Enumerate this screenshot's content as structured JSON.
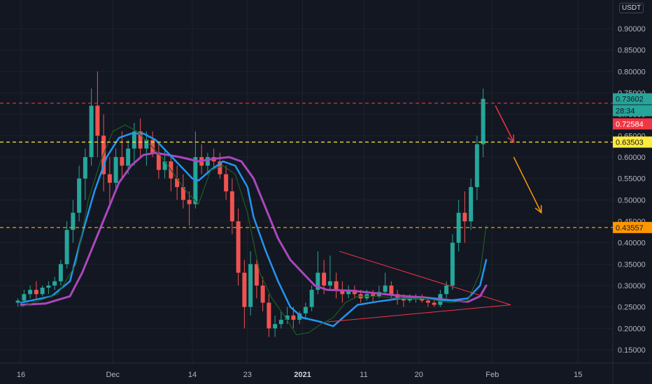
{
  "chart_data": {
    "type": "candlestick",
    "currency": "USDT",
    "ylim": [
      0.12,
      0.96
    ],
    "y_ticks": [
      "0.90000",
      "0.85000",
      "0.80000",
      "0.75000",
      "0.70000",
      "0.65000",
      "0.60000",
      "0.55000",
      "0.50000",
      "0.45000",
      "0.40000",
      "0.35000",
      "0.30000",
      "0.25000",
      "0.20000",
      "0.15000"
    ],
    "y_tick_values": [
      0.9,
      0.85,
      0.8,
      0.75,
      0.7,
      0.65,
      0.6,
      0.55,
      0.5,
      0.45,
      0.4,
      0.35,
      0.3,
      0.25,
      0.2,
      0.15
    ],
    "x_ticks": [
      {
        "label": "16",
        "day": 0,
        "bold": false
      },
      {
        "label": "Dec",
        "day": 15,
        "bold": false
      },
      {
        "label": "14",
        "day": 28,
        "bold": false
      },
      {
        "label": "23",
        "day": 37,
        "bold": false
      },
      {
        "label": "2021",
        "day": 46,
        "bold": true
      },
      {
        "label": "11",
        "day": 56,
        "bold": false
      },
      {
        "label": "20",
        "day": 65,
        "bold": false
      },
      {
        "label": "Feb",
        "day": 77,
        "bold": false
      },
      {
        "label": "15",
        "day": 91,
        "bold": false
      }
    ],
    "price_labels": [
      {
        "label": "0.73602",
        "value": 0.73602,
        "color": "#26a69a",
        "text_color": "#131722"
      },
      {
        "label": "28:34",
        "value": 0.7085,
        "color": "#26a69a",
        "text_color": "#131722"
      },
      {
        "label": "0.72584",
        "value": 0.6775,
        "color": "#f23645",
        "text_color": "#ffffff"
      },
      {
        "label": "0.63503",
        "value": 0.63503,
        "color": "#ffeb3b",
        "text_color": "#131722"
      },
      {
        "label": "0.43557",
        "value": 0.43557,
        "color": "#ff9800",
        "text_color": "#131722"
      }
    ],
    "horizontal_lines": [
      {
        "value": 0.72584,
        "color": "#f23645"
      },
      {
        "value": 0.63503,
        "color": "#ffeb3b"
      },
      {
        "value": 0.43557,
        "color": "#ff9800"
      }
    ],
    "ma_series": [
      {
        "color": "#ab47bc",
        "points": [
          [
            0,
            0.255
          ],
          [
            4,
            0.258
          ],
          [
            8,
            0.275
          ],
          [
            10,
            0.33
          ],
          [
            12,
            0.4
          ],
          [
            14,
            0.47
          ],
          [
            16,
            0.54
          ],
          [
            18,
            0.58
          ],
          [
            20,
            0.605
          ],
          [
            22,
            0.61
          ],
          [
            24,
            0.605
          ],
          [
            26,
            0.6
          ],
          [
            29,
            0.59
          ],
          [
            31,
            0.595
          ],
          [
            34,
            0.6
          ],
          [
            36,
            0.59
          ],
          [
            38,
            0.55
          ],
          [
            40,
            0.48
          ],
          [
            42,
            0.41
          ],
          [
            44,
            0.36
          ],
          [
            46,
            0.33
          ],
          [
            48,
            0.3
          ],
          [
            50,
            0.29
          ],
          [
            54,
            0.288
          ],
          [
            58,
            0.282
          ],
          [
            62,
            0.276
          ],
          [
            66,
            0.272
          ],
          [
            70,
            0.266
          ],
          [
            73,
            0.262
          ],
          [
            75,
            0.275
          ],
          [
            76,
            0.3
          ]
        ]
      },
      {
        "color": "#2196f3",
        "points": [
          [
            0,
            0.26
          ],
          [
            5,
            0.275
          ],
          [
            8,
            0.31
          ],
          [
            10,
            0.42
          ],
          [
            12,
            0.52
          ],
          [
            14,
            0.6
          ],
          [
            16,
            0.645
          ],
          [
            18,
            0.655
          ],
          [
            20,
            0.655
          ],
          [
            22,
            0.64
          ],
          [
            24,
            0.61
          ],
          [
            26,
            0.58
          ],
          [
            28,
            0.55
          ],
          [
            29,
            0.545
          ],
          [
            31,
            0.57
          ],
          [
            33,
            0.59
          ],
          [
            35,
            0.58
          ],
          [
            37,
            0.53
          ],
          [
            38,
            0.46
          ],
          [
            40,
            0.38
          ],
          [
            42,
            0.31
          ],
          [
            44,
            0.25
          ],
          [
            46,
            0.225
          ],
          [
            49,
            0.215
          ],
          [
            51,
            0.205
          ],
          [
            53,
            0.23
          ],
          [
            55,
            0.255
          ],
          [
            58,
            0.262
          ],
          [
            62,
            0.27
          ],
          [
            66,
            0.27
          ],
          [
            70,
            0.265
          ],
          [
            73,
            0.27
          ],
          [
            75,
            0.3
          ],
          [
            76,
            0.36
          ]
        ]
      },
      {
        "color": "#1b5e20",
        "points": [
          [
            0,
            0.25
          ],
          [
            6,
            0.28
          ],
          [
            9,
            0.35
          ],
          [
            11,
            0.5
          ],
          [
            13,
            0.59
          ],
          [
            15,
            0.66
          ],
          [
            17,
            0.675
          ],
          [
            19,
            0.66
          ],
          [
            21,
            0.63
          ],
          [
            23,
            0.6
          ],
          [
            25,
            0.56
          ],
          [
            27,
            0.52
          ],
          [
            29,
            0.49
          ],
          [
            31,
            0.57
          ],
          [
            33,
            0.58
          ],
          [
            35,
            0.56
          ],
          [
            37,
            0.47
          ],
          [
            39,
            0.33
          ],
          [
            41,
            0.27
          ],
          [
            43,
            0.23
          ],
          [
            45,
            0.185
          ],
          [
            47,
            0.19
          ],
          [
            49,
            0.21
          ],
          [
            51,
            0.225
          ],
          [
            53,
            0.26
          ],
          [
            55,
            0.275
          ],
          [
            58,
            0.275
          ],
          [
            62,
            0.27
          ],
          [
            66,
            0.27
          ],
          [
            70,
            0.26
          ],
          [
            73,
            0.265
          ],
          [
            75,
            0.33
          ],
          [
            76,
            0.44
          ]
        ]
      }
    ],
    "trendlines": [
      {
        "from": [
          52,
          0.38
        ],
        "to": [
          80,
          0.255
        ],
        "color": "#f23645"
      },
      {
        "from": [
          50,
          0.215
        ],
        "to": [
          80,
          0.255
        ],
        "color": "#f23645"
      }
    ],
    "arrows": [
      {
        "from": [
          77.5,
          0.72
        ],
        "to": [
          80.5,
          0.635
        ],
        "color": "#f23645"
      },
      {
        "from": [
          80.5,
          0.6
        ],
        "to": [
          85,
          0.47
        ],
        "color": "#ff9800"
      }
    ],
    "bull_color": "#26a69a",
    "bear_color": "#ef5350",
    "candles": [
      [
        0.26,
        0.27,
        0.25,
        0.265
      ],
      [
        0.265,
        0.29,
        0.26,
        0.28
      ],
      [
        0.28,
        0.3,
        0.27,
        0.29
      ],
      [
        0.29,
        0.31,
        0.27,
        0.28
      ],
      [
        0.28,
        0.3,
        0.275,
        0.295
      ],
      [
        0.295,
        0.31,
        0.28,
        0.3
      ],
      [
        0.3,
        0.32,
        0.29,
        0.31
      ],
      [
        0.31,
        0.36,
        0.3,
        0.35
      ],
      [
        0.35,
        0.45,
        0.34,
        0.43
      ],
      [
        0.43,
        0.5,
        0.4,
        0.47
      ],
      [
        0.47,
        0.58,
        0.45,
        0.55
      ],
      [
        0.55,
        0.62,
        0.5,
        0.6
      ],
      [
        0.6,
        0.76,
        0.58,
        0.72
      ],
      [
        0.72,
        0.8,
        0.6,
        0.65
      ],
      [
        0.65,
        0.7,
        0.52,
        0.56
      ],
      [
        0.56,
        0.6,
        0.48,
        0.54
      ],
      [
        0.54,
        0.62,
        0.52,
        0.6
      ],
      [
        0.6,
        0.66,
        0.55,
        0.58
      ],
      [
        0.58,
        0.64,
        0.56,
        0.62
      ],
      [
        0.62,
        0.68,
        0.58,
        0.66
      ],
      [
        0.66,
        0.69,
        0.6,
        0.62
      ],
      [
        0.62,
        0.66,
        0.58,
        0.64
      ],
      [
        0.64,
        0.66,
        0.6,
        0.61
      ],
      [
        0.61,
        0.63,
        0.55,
        0.57
      ],
      [
        0.57,
        0.62,
        0.55,
        0.59
      ],
      [
        0.59,
        0.6,
        0.52,
        0.55
      ],
      [
        0.55,
        0.58,
        0.5,
        0.53
      ],
      [
        0.53,
        0.56,
        0.48,
        0.5
      ],
      [
        0.5,
        0.52,
        0.44,
        0.49
      ],
      [
        0.49,
        0.66,
        0.48,
        0.6
      ],
      [
        0.6,
        0.63,
        0.56,
        0.58
      ],
      [
        0.58,
        0.61,
        0.56,
        0.6
      ],
      [
        0.6,
        0.62,
        0.57,
        0.59
      ],
      [
        0.59,
        0.61,
        0.55,
        0.56
      ],
      [
        0.56,
        0.58,
        0.5,
        0.52
      ],
      [
        0.52,
        0.55,
        0.42,
        0.45
      ],
      [
        0.45,
        0.48,
        0.3,
        0.33
      ],
      [
        0.33,
        0.36,
        0.2,
        0.25
      ],
      [
        0.25,
        0.38,
        0.23,
        0.35
      ],
      [
        0.35,
        0.36,
        0.27,
        0.3
      ],
      [
        0.3,
        0.32,
        0.24,
        0.26
      ],
      [
        0.26,
        0.28,
        0.18,
        0.2
      ],
      [
        0.2,
        0.23,
        0.18,
        0.21
      ],
      [
        0.21,
        0.24,
        0.2,
        0.22
      ],
      [
        0.22,
        0.25,
        0.21,
        0.23
      ],
      [
        0.23,
        0.25,
        0.2,
        0.22
      ],
      [
        0.22,
        0.24,
        0.21,
        0.235
      ],
      [
        0.235,
        0.26,
        0.22,
        0.25
      ],
      [
        0.25,
        0.3,
        0.24,
        0.29
      ],
      [
        0.29,
        0.38,
        0.28,
        0.33
      ],
      [
        0.33,
        0.36,
        0.28,
        0.3
      ],
      [
        0.3,
        0.37,
        0.29,
        0.31
      ],
      [
        0.31,
        0.33,
        0.27,
        0.29
      ],
      [
        0.29,
        0.31,
        0.26,
        0.28
      ],
      [
        0.28,
        0.3,
        0.27,
        0.29
      ],
      [
        0.29,
        0.3,
        0.27,
        0.28
      ],
      [
        0.28,
        0.29,
        0.26,
        0.27
      ],
      [
        0.27,
        0.29,
        0.265,
        0.28
      ],
      [
        0.28,
        0.29,
        0.26,
        0.275
      ],
      [
        0.275,
        0.3,
        0.27,
        0.285
      ],
      [
        0.285,
        0.33,
        0.28,
        0.3
      ],
      [
        0.3,
        0.31,
        0.27,
        0.28
      ],
      [
        0.28,
        0.29,
        0.255,
        0.27
      ],
      [
        0.27,
        0.28,
        0.25,
        0.265
      ],
      [
        0.265,
        0.28,
        0.26,
        0.27
      ],
      [
        0.27,
        0.28,
        0.26,
        0.275
      ],
      [
        0.275,
        0.28,
        0.26,
        0.265
      ],
      [
        0.265,
        0.27,
        0.25,
        0.26
      ],
      [
        0.26,
        0.27,
        0.25,
        0.255
      ],
      [
        0.255,
        0.29,
        0.25,
        0.28
      ],
      [
        0.28,
        0.31,
        0.27,
        0.3
      ],
      [
        0.3,
        0.42,
        0.29,
        0.4
      ],
      [
        0.4,
        0.5,
        0.38,
        0.47
      ],
      [
        0.47,
        0.52,
        0.4,
        0.45
      ],
      [
        0.45,
        0.55,
        0.43,
        0.53
      ],
      [
        0.53,
        0.65,
        0.5,
        0.63
      ],
      [
        0.63,
        0.76,
        0.6,
        0.73602
      ]
    ]
  }
}
